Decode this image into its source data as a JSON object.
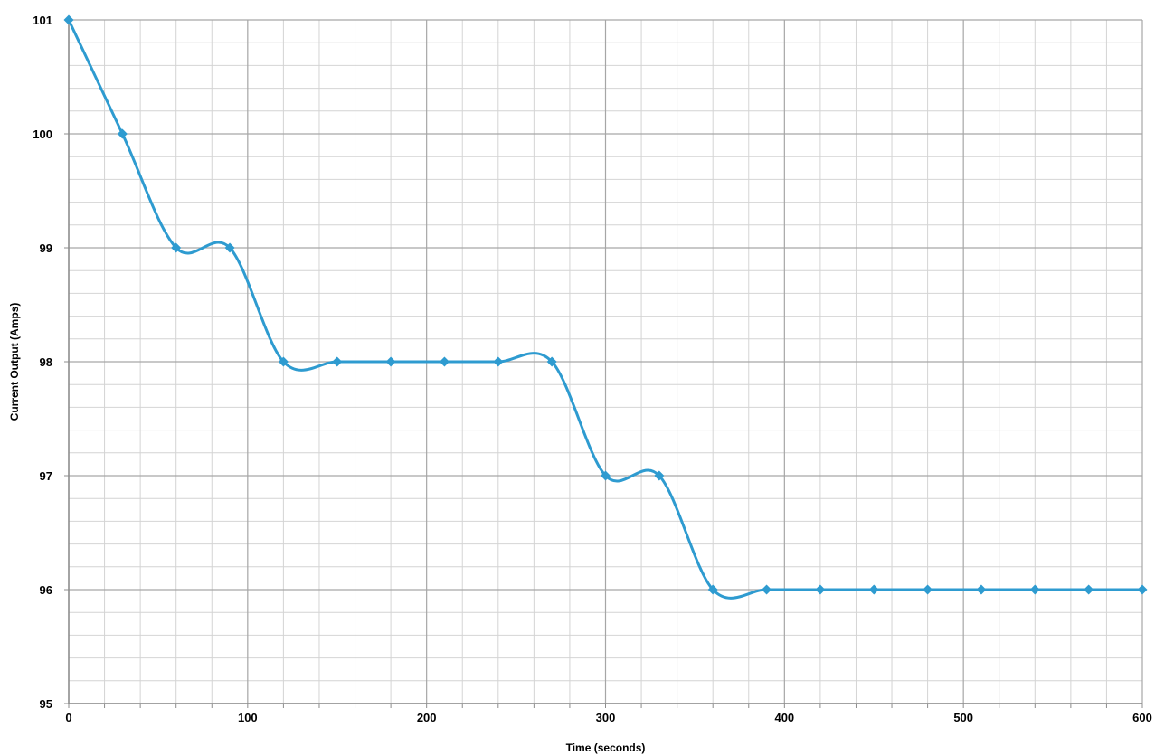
{
  "chart_data": {
    "type": "line",
    "title": "",
    "xlabel": "Time (seconds)",
    "ylabel": "Current Output (Amps)",
    "xlim": [
      0,
      600
    ],
    "ylim": [
      95,
      101
    ],
    "x_ticks": [
      0,
      100,
      200,
      300,
      400,
      500,
      600
    ],
    "x_tick_labels": [
      "0",
      "100",
      "200",
      "300",
      "400",
      "500",
      "600"
    ],
    "y_ticks": [
      95,
      96,
      97,
      98,
      99,
      100,
      101
    ],
    "y_tick_labels": [
      "95",
      "96",
      "97",
      "98",
      "99",
      "100",
      "101"
    ],
    "x_minor_step": 20,
    "y_minor_step": 0.2,
    "grid": true,
    "smoothed": true,
    "marker": "diamond",
    "series": [
      {
        "color": "#2E9BD0",
        "x": [
          0,
          30,
          60,
          90,
          120,
          150,
          180,
          210,
          240,
          270,
          300,
          330,
          360,
          390,
          420,
          450,
          480,
          510,
          540,
          570,
          600
        ],
        "y": [
          101,
          100,
          99,
          99,
          98,
          98,
          98,
          98,
          98,
          98,
          97,
          97,
          96,
          96,
          96,
          96,
          96,
          96,
          96,
          96,
          96
        ]
      }
    ],
    "colors": {
      "major_grid": "#A6A6A6",
      "minor_grid": "#D4D4D4",
      "axis": "#8C8C8C"
    }
  }
}
